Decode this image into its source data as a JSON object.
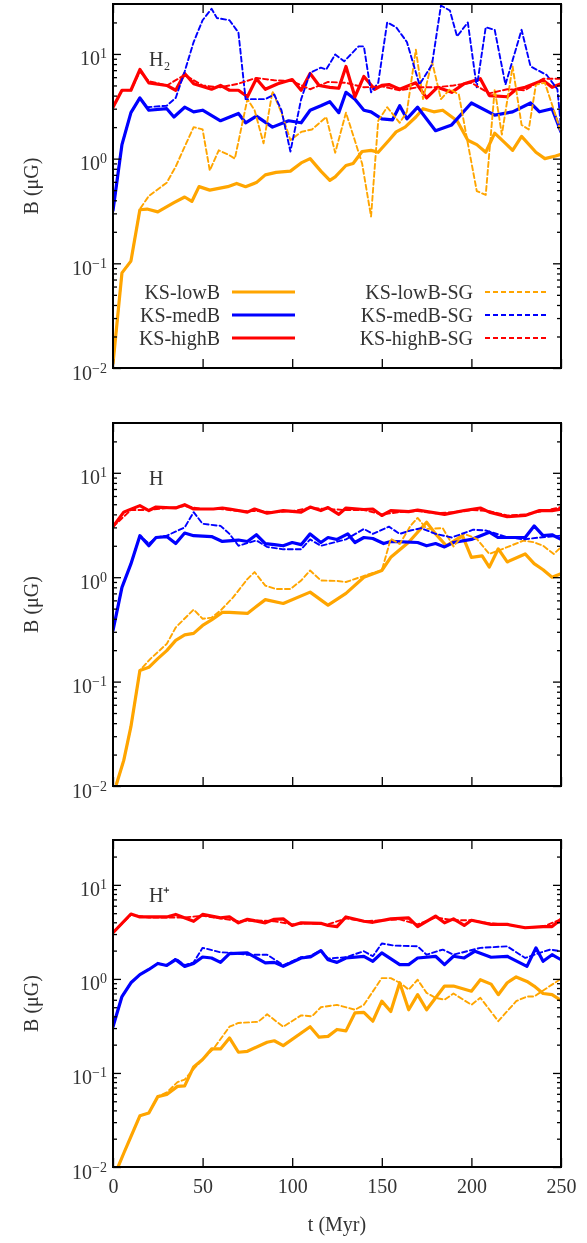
{
  "chart_data": [
    {
      "type": "line",
      "annotations": [
        "H₂"
      ],
      "ylabel": "B (μG)",
      "xlim": [
        0,
        250
      ],
      "xticks": [
        0,
        50,
        100,
        150,
        200,
        250
      ],
      "ylim": [
        0.01,
        30
      ],
      "log": true,
      "tick_labels": "y",
      "legend": "bottom",
      "yticks": [
        {
          "value": 0.01,
          "label": "10$^{−2}$"
        },
        {
          "value": 0.02,
          "label": null
        },
        {
          "value": 0.03,
          "label": null
        },
        {
          "value": 0.04,
          "label": null
        },
        {
          "value": 0.05,
          "label": null
        },
        {
          "value": 0.06,
          "label": null
        },
        {
          "value": 0.07,
          "label": null
        },
        {
          "value": 0.08,
          "label": null
        },
        {
          "value": 0.09,
          "label": null
        },
        {
          "value": 0.1,
          "label": "10$^{−1}$"
        },
        {
          "value": 0.2,
          "label": null
        },
        {
          "value": 0.3,
          "label": null
        },
        {
          "value": 0.4,
          "label": null
        },
        {
          "value": 0.5,
          "label": null
        },
        {
          "value": 0.6,
          "label": null
        },
        {
          "value": 0.7,
          "label": null
        },
        {
          "value": 0.8,
          "label": null
        },
        {
          "value": 0.9,
          "label": null
        },
        {
          "value": 1,
          "label": "10$^{0}$"
        },
        {
          "value": 2,
          "label": null
        },
        {
          "value": 3,
          "label": null
        },
        {
          "value": 4,
          "label": null
        },
        {
          "value": 5,
          "label": null
        },
        {
          "value": 6,
          "label": null
        },
        {
          "value": 7,
          "label": null
        },
        {
          "value": 8,
          "label": null
        },
        {
          "value": 9,
          "label": null
        },
        {
          "value": 10,
          "label": "10$^{1}$"
        },
        {
          "value": 20,
          "label": null
        }
      ],
      "series": [
        {
          "name": "KS-lowB",
          "color": "#ffa500",
          "line_style": "solid",
          "x": [
            0,
            5,
            10,
            15,
            19,
            25,
            34,
            40,
            44,
            48,
            54,
            64,
            69,
            74,
            80,
            85,
            91,
            99,
            105,
            110,
            116,
            121,
            124,
            130,
            134,
            139,
            144,
            148,
            154,
            158,
            163,
            169,
            173,
            179,
            184,
            192,
            198,
            203,
            208,
            213,
            219,
            223,
            228,
            236,
            241,
            247,
            250
          ],
          "values": [
            0.011,
            0.081,
            0.105,
            0.325,
            0.33,
            0.31,
            0.38,
            0.43,
            0.39,
            0.54,
            0.5,
            0.54,
            0.58,
            0.54,
            0.59,
            0.7,
            0.74,
            0.76,
            0.91,
            1.0,
            0.76,
            0.62,
            0.67,
            0.86,
            0.9,
            1.17,
            1.2,
            1.15,
            1.5,
            1.8,
            2.0,
            2.5,
            3.0,
            2.8,
            2.9,
            2.3,
            1.5,
            1.36,
            1.15,
            1.75,
            1.4,
            1.2,
            1.63,
            1.15,
            1.0,
            1.06,
            1.1
          ]
        },
        {
          "name": "KS-medB",
          "color": "#0000ff",
          "line_style": "solid",
          "x": [
            0,
            5,
            10,
            15,
            20,
            30,
            34,
            40,
            45,
            50,
            60,
            70,
            74,
            80,
            89,
            98,
            105,
            110,
            116,
            121,
            126,
            130,
            135,
            140,
            144,
            150,
            156,
            160,
            164,
            170,
            180,
            189,
            200,
            213,
            223,
            233,
            238,
            245,
            250
          ],
          "values": [
            0.32,
            1.36,
            2.75,
            3.8,
            2.9,
            3.0,
            2.5,
            3.1,
            2.8,
            2.9,
            2.3,
            2.7,
            2.2,
            2.55,
            2.0,
            2.3,
            2.2,
            2.9,
            3.2,
            3.5,
            2.75,
            4.3,
            3.7,
            2.9,
            2.8,
            2.4,
            2.35,
            3.2,
            2.4,
            3.1,
            1.85,
            2.1,
            3.4,
            2.6,
            2.8,
            3.4,
            2.8,
            3.0,
            1.8
          ]
        },
        {
          "name": "KS-highB",
          "color": "#ff0000",
          "line_style": "solid",
          "x": [
            0,
            5,
            10,
            15,
            20,
            30,
            35,
            40,
            45,
            55,
            60,
            65,
            70,
            75,
            80,
            85,
            92,
            100,
            105,
            110,
            115,
            121,
            126,
            130,
            135,
            140,
            146,
            150,
            154,
            160,
            169,
            175,
            181,
            189,
            196,
            205,
            210,
            220,
            225,
            230,
            240,
            245,
            250
          ],
          "values": [
            3.1,
            4.5,
            4.5,
            7.1,
            5.3,
            5.0,
            4.5,
            6.5,
            5.2,
            4.6,
            5.0,
            4.5,
            4.5,
            3.9,
            5.8,
            4.6,
            5.2,
            5.7,
            4.5,
            6.5,
            5.0,
            4.8,
            4.7,
            7.6,
            3.9,
            6.1,
            4.6,
            5.0,
            5.1,
            4.6,
            5.3,
            3.8,
            4.8,
            4.3,
            5.2,
            5.8,
            4.0,
            3.9,
            4.6,
            4.8,
            5.6,
            4.8,
            5.2
          ]
        },
        {
          "name": "KS-lowB-SG",
          "color": "#ffa500",
          "line_style": "dashed",
          "x": [
            0,
            5,
            10,
            15,
            20,
            30,
            35,
            40,
            45,
            50,
            54,
            59,
            64,
            68,
            75,
            79,
            84,
            89,
            94,
            99,
            105,
            111,
            119,
            124,
            130,
            133,
            139,
            144,
            148,
            153,
            160,
            164,
            169,
            173,
            178,
            183,
            188,
            193,
            198,
            203,
            208,
            213,
            217,
            223,
            228,
            232,
            236,
            241,
            250
          ],
          "values": [
            0.011,
            0.081,
            0.105,
            0.33,
            0.44,
            0.59,
            0.84,
            1.3,
            2.0,
            1.9,
            0.77,
            1.2,
            1.1,
            1.0,
            3.7,
            2.9,
            1.4,
            4.4,
            2.75,
            1.5,
            1.8,
            1.9,
            2.5,
            1.14,
            2.75,
            1.9,
            0.9,
            0.28,
            2.3,
            3.1,
            2.2,
            2.8,
            11,
            3.7,
            8.5,
            3.7,
            4.6,
            4.1,
            1.4,
            0.49,
            0.45,
            4.6,
            1.7,
            7.6,
            2.1,
            1.9,
            5.1,
            5.3,
            1.8
          ]
        },
        {
          "name": "KS-medB-SG",
          "color": "#0000ff",
          "line_style": "dashed",
          "x": [
            0,
            5,
            10,
            15,
            19,
            30,
            35,
            40,
            45,
            50,
            55,
            58,
            65,
            70,
            74,
            85,
            90,
            94,
            99,
            105,
            110,
            116,
            119,
            124,
            129,
            137,
            140,
            144,
            148,
            153,
            158,
            164,
            171,
            178,
            183,
            188,
            192,
            198,
            203,
            208,
            213,
            219,
            228,
            233,
            242,
            248,
            250
          ],
          "values": [
            0.32,
            1.36,
            2.75,
            3.8,
            3.1,
            3.2,
            3.8,
            6.8,
            13,
            21,
            27,
            22,
            21,
            16,
            3.7,
            3.7,
            4.1,
            2.9,
            1.17,
            3.7,
            6.6,
            7.4,
            7.1,
            9.9,
            8.5,
            11.8,
            11.8,
            4.3,
            5.3,
            20,
            18,
            13,
            5.1,
            7.9,
            29,
            26,
            14.7,
            20,
            4.8,
            18,
            17,
            5.1,
            17,
            7.6,
            6.3,
            4.6,
            2.0
          ]
        },
        {
          "name": "KS-highB-SG",
          "color": "#ff0000",
          "line_style": "dashed",
          "x": [
            0,
            5,
            10,
            15,
            20,
            30,
            40,
            50,
            60,
            70,
            80,
            90,
            100,
            110,
            120,
            130,
            140,
            150,
            160,
            170,
            180,
            190,
            200,
            210,
            220,
            230,
            240,
            250
          ],
          "values": [
            3.1,
            4.5,
            4.5,
            6.8,
            5.5,
            5.0,
            6.3,
            5.0,
            4.8,
            5.2,
            5.9,
            5.6,
            5.5,
            4.6,
            5.4,
            5.3,
            4.8,
            4.9,
            4.5,
            4.8,
            4.8,
            5.0,
            5.3,
            4.2,
            4.6,
            4.5,
            5.8,
            5.8
          ]
        }
      ]
    },
    {
      "type": "line",
      "annotations": [
        "H"
      ],
      "ylabel": "B (μG)",
      "xlim": [
        0,
        250
      ],
      "xticks": [
        0,
        50,
        100,
        150,
        200,
        250
      ],
      "ylim": [
        0.01,
        30
      ],
      "log": true,
      "tick_labels": "y",
      "yticks": [
        {
          "value": 0.01,
          "label": "10$^{−2}$"
        },
        {
          "value": 0.02,
          "label": null
        },
        {
          "value": 0.03,
          "label": null
        },
        {
          "value": 0.04,
          "label": null
        },
        {
          "value": 0.05,
          "label": null
        },
        {
          "value": 0.06,
          "label": null
        },
        {
          "value": 0.07,
          "label": null
        },
        {
          "value": 0.08,
          "label": null
        },
        {
          "value": 0.09,
          "label": null
        },
        {
          "value": 0.1,
          "label": "10$^{−1}$"
        },
        {
          "value": 0.2,
          "label": null
        },
        {
          "value": 0.3,
          "label": null
        },
        {
          "value": 0.4,
          "label": null
        },
        {
          "value": 0.5,
          "label": null
        },
        {
          "value": 0.6,
          "label": null
        },
        {
          "value": 0.7,
          "label": null
        },
        {
          "value": 0.8,
          "label": null
        },
        {
          "value": 0.9,
          "label": null
        },
        {
          "value": 1,
          "label": "10$^{0}$"
        },
        {
          "value": 2,
          "label": null
        },
        {
          "value": 3,
          "label": null
        },
        {
          "value": 4,
          "label": null
        },
        {
          "value": 5,
          "label": null
        },
        {
          "value": 6,
          "label": null
        },
        {
          "value": 7,
          "label": null
        },
        {
          "value": 8,
          "label": null
        },
        {
          "value": 9,
          "label": null
        },
        {
          "value": 10,
          "label": "10$^{1}$"
        },
        {
          "value": 20,
          "label": null
        }
      ],
      "series": [
        {
          "color": "#ffa500",
          "line_style": "solid",
          "x": [
            2,
            6,
            10,
            15,
            20,
            25,
            30,
            35,
            40,
            45,
            50,
            55,
            61,
            65,
            75,
            85,
            95,
            110,
            120,
            130,
            140,
            150,
            155,
            165,
            175,
            180,
            186,
            195,
            200,
            206,
            210,
            215,
            220,
            230,
            235,
            240,
            245,
            250
          ],
          "values": [
            0.0105,
            0.0176,
            0.037,
            0.128,
            0.137,
            0.166,
            0.198,
            0.248,
            0.28,
            0.29,
            0.345,
            0.39,
            0.46,
            0.46,
            0.45,
            0.61,
            0.56,
            0.72,
            0.54,
            0.7,
            1.0,
            1.16,
            1.55,
            2.16,
            3.36,
            2.6,
            2.0,
            2.5,
            1.55,
            1.6,
            1.25,
            1.87,
            1.4,
            1.67,
            1.35,
            1.18,
            1.0,
            1.08
          ]
        },
        {
          "color": "#0000ff",
          "line_style": "solid",
          "x": [
            0,
            5,
            10,
            15,
            20,
            24,
            30,
            35,
            40,
            45,
            55,
            61,
            70,
            75,
            80,
            85,
            90,
            95,
            100,
            105,
            110,
            116,
            120,
            125,
            131,
            135,
            140,
            145,
            151,
            155,
            170,
            175,
            180,
            185,
            190,
            200,
            210,
            215,
            230,
            235,
            240,
            245,
            250
          ],
          "values": [
            0.31,
            0.8,
            1.34,
            2.5,
            2.0,
            2.4,
            2.45,
            2.1,
            2.65,
            2.5,
            2.45,
            2.2,
            2.27,
            2.2,
            2.55,
            2.1,
            2.05,
            2.0,
            2.15,
            2.05,
            2.6,
            2.15,
            2.4,
            2.3,
            2.6,
            2.15,
            2.4,
            2.35,
            2.1,
            2.2,
            2.15,
            2.0,
            2.1,
            1.95,
            2.15,
            2.3,
            2.7,
            2.4,
            2.4,
            3.1,
            2.5,
            2.55,
            2.3
          ]
        },
        {
          "color": "#ff0000",
          "line_style": "solid",
          "x": [
            0,
            6,
            15,
            20,
            24,
            35,
            40,
            45,
            56,
            61,
            65,
            75,
            79,
            86,
            95,
            105,
            110,
            116,
            120,
            126,
            130,
            140,
            145,
            150,
            155,
            165,
            170,
            185,
            196,
            205,
            210,
            220,
            230,
            238,
            245,
            250
          ],
          "values": [
            3.05,
            4.2,
            4.85,
            4.35,
            4.7,
            4.6,
            4.95,
            4.5,
            4.5,
            4.6,
            4.5,
            4.2,
            4.5,
            4.1,
            4.35,
            4.2,
            4.7,
            4.35,
            4.65,
            4.0,
            4.6,
            4.45,
            4.5,
            3.9,
            4.35,
            4.25,
            4.4,
            4.0,
            4.35,
            4.6,
            4.2,
            3.8,
            3.9,
            4.35,
            4.35,
            4.5
          ]
        },
        {
          "color": "#ffa500",
          "line_style": "dashed",
          "x": [
            2,
            6,
            10,
            15,
            21,
            30,
            35,
            45,
            50,
            55,
            60,
            67,
            75,
            79,
            85,
            91,
            99,
            105,
            110,
            116,
            125,
            130,
            143,
            150,
            155,
            160,
            166,
            170,
            175,
            184,
            190,
            196,
            203,
            210,
            220,
            229,
            235,
            240,
            246,
            250
          ],
          "values": [
            0.0105,
            0.0176,
            0.037,
            0.128,
            0.166,
            0.23,
            0.33,
            0.49,
            0.4,
            0.41,
            0.48,
            0.64,
            0.96,
            1.12,
            0.83,
            0.77,
            0.77,
            0.93,
            1.16,
            0.93,
            0.92,
            0.9,
            1.07,
            1.16,
            2.33,
            2.08,
            3.1,
            3.7,
            2.9,
            2.95,
            1.97,
            2.6,
            2.33,
            1.67,
            1.94,
            2.24,
            2.16,
            2.0,
            1.67,
            1.94
          ]
        },
        {
          "color": "#0000ff",
          "line_style": "dashed",
          "x": [
            0,
            5,
            10,
            15,
            20,
            24,
            30,
            40,
            45,
            50,
            60,
            65,
            70,
            80,
            86,
            95,
            105,
            110,
            116,
            130,
            140,
            145,
            154,
            160,
            166,
            172,
            180,
            189,
            201,
            208,
            219,
            229,
            238,
            250
          ],
          "values": [
            0.31,
            0.8,
            1.34,
            2.5,
            2.1,
            2.4,
            2.5,
            3.0,
            4.2,
            3.25,
            3.1,
            2.6,
            2.0,
            2.25,
            1.95,
            1.85,
            1.85,
            2.3,
            2.0,
            2.3,
            2.9,
            2.6,
            3.05,
            2.6,
            2.8,
            2.95,
            2.6,
            2.4,
            2.85,
            2.8,
            2.45,
            2.3,
            2.4,
            2.5
          ]
        },
        {
          "color": "#ff0000",
          "line_style": "dashed",
          "x": [
            0,
            10,
            20,
            30,
            40,
            50,
            60,
            70,
            80,
            90,
            100,
            110,
            120,
            130,
            140,
            150,
            160,
            170,
            180,
            190,
            200,
            210,
            220,
            230,
            240,
            250
          ],
          "values": [
            3.05,
            4.4,
            4.4,
            4.6,
            4.8,
            4.5,
            4.5,
            4.3,
            4.3,
            4.2,
            4.3,
            4.6,
            4.5,
            4.4,
            4.4,
            4.0,
            4.2,
            4.3,
            4.1,
            4.2,
            4.4,
            4.3,
            3.9,
            4.0,
            4.3,
            4.7
          ]
        }
      ]
    },
    {
      "type": "line",
      "annotations": [
        "H⁺"
      ],
      "ylabel": "B (μG)",
      "xlabel": "t (Myr)",
      "xlim": [
        0,
        250
      ],
      "xticks": [
        0,
        50,
        100,
        150,
        200,
        250
      ],
      "ylim": [
        0.01,
        30
      ],
      "log": true,
      "yticks": [
        {
          "value": 0.01,
          "label": "10$^{−2}$"
        },
        {
          "value": 0.02,
          "label": null
        },
        {
          "value": 0.03,
          "label": null
        },
        {
          "value": 0.04,
          "label": null
        },
        {
          "value": 0.05,
          "label": null
        },
        {
          "value": 0.06,
          "label": null
        },
        {
          "value": 0.07,
          "label": null
        },
        {
          "value": 0.08,
          "label": null
        },
        {
          "value": 0.09,
          "label": null
        },
        {
          "value": 0.1,
          "label": "10$^{−1}$"
        },
        {
          "value": 0.2,
          "label": null
        },
        {
          "value": 0.3,
          "label": null
        },
        {
          "value": 0.4,
          "label": null
        },
        {
          "value": 0.5,
          "label": null
        },
        {
          "value": 0.6,
          "label": null
        },
        {
          "value": 0.7,
          "label": null
        },
        {
          "value": 0.8,
          "label": null
        },
        {
          "value": 0.9,
          "label": null
        },
        {
          "value": 1,
          "label": "10$^{0}$"
        },
        {
          "value": 2,
          "label": null
        },
        {
          "value": 3,
          "label": null
        },
        {
          "value": 4,
          "label": null
        },
        {
          "value": 5,
          "label": null
        },
        {
          "value": 6,
          "label": null
        },
        {
          "value": 7,
          "label": null
        },
        {
          "value": 8,
          "label": null
        },
        {
          "value": 9,
          "label": null
        },
        {
          "value": 10,
          "label": "10$^{1}$"
        },
        {
          "value": 20,
          "label": null
        }
      ],
      "series": [
        {
          "color": "#ffa500",
          "line_style": "solid",
          "x": [
            3,
            6,
            10,
            15,
            20,
            25,
            30,
            36,
            40,
            45,
            50,
            55,
            60,
            65,
            70,
            75,
            86,
            90,
            95,
            110,
            115,
            120,
            125,
            130,
            135,
            140,
            145,
            150,
            155,
            160,
            165,
            170,
            175,
            185,
            190,
            200,
            205,
            211,
            215,
            220,
            225,
            231,
            235,
            240,
            245,
            250
          ],
          "values": [
            0.0102,
            0.014,
            0.021,
            0.035,
            0.0375,
            0.056,
            0.059,
            0.072,
            0.073,
            0.116,
            0.139,
            0.18,
            0.18,
            0.236,
            0.166,
            0.17,
            0.212,
            0.22,
            0.195,
            0.31,
            0.24,
            0.245,
            0.29,
            0.28,
            0.435,
            0.44,
            0.355,
            0.58,
            0.45,
            0.91,
            0.47,
            0.68,
            0.47,
            0.84,
            0.84,
            0.74,
            0.98,
            0.88,
            0.68,
            0.91,
            1.05,
            0.94,
            0.84,
            0.7,
            0.68,
            0.59
          ]
        },
        {
          "color": "#0000ff",
          "line_style": "solid",
          "x": [
            0,
            5,
            10,
            15,
            20,
            25,
            30,
            35,
            40,
            45,
            50,
            55,
            60,
            65,
            75,
            85,
            90,
            95,
            105,
            110,
            116,
            120,
            125,
            130,
            140,
            145,
            150,
            160,
            165,
            170,
            180,
            185,
            190,
            196,
            202,
            211,
            220,
            231,
            236,
            240,
            245,
            250
          ],
          "values": [
            0.31,
            0.65,
            0.91,
            1.11,
            1.26,
            1.46,
            1.39,
            1.6,
            1.36,
            1.46,
            1.71,
            1.67,
            1.5,
            1.86,
            1.89,
            1.48,
            1.5,
            1.36,
            1.67,
            1.71,
            2.0,
            1.6,
            1.5,
            1.67,
            1.74,
            1.54,
            1.89,
            1.42,
            1.42,
            1.67,
            1.74,
            1.42,
            1.74,
            1.67,
            1.97,
            1.7,
            1.74,
            1.36,
            2.14,
            1.54,
            1.81,
            1.6
          ]
        },
        {
          "color": "#ff0000",
          "line_style": "solid",
          "x": [
            0,
            10,
            15,
            30,
            35,
            45,
            50,
            60,
            65,
            70,
            75,
            85,
            90,
            95,
            100,
            105,
            116,
            120,
            125,
            130,
            140,
            145,
            155,
            165,
            170,
            180,
            185,
            190,
            196,
            200,
            211,
            220,
            230,
            240,
            245,
            250
          ],
          "values": [
            3.1,
            4.9,
            4.56,
            4.56,
            4.85,
            4.1,
            4.85,
            4.45,
            4.56,
            3.95,
            4.3,
            3.95,
            4.3,
            4.35,
            3.7,
            3.95,
            3.9,
            3.7,
            3.6,
            4.56,
            4.1,
            4.0,
            4.35,
            4.45,
            3.6,
            4.65,
            3.95,
            4.35,
            3.7,
            4.2,
            3.8,
            3.8,
            3.5,
            3.6,
            3.6,
            4.3
          ]
        },
        {
          "color": "#ffa500",
          "line_style": "dashed",
          "x": [
            3,
            6,
            10,
            15,
            20,
            25,
            30,
            36,
            40,
            45,
            50,
            56,
            65,
            70,
            81,
            86,
            95,
            105,
            111,
            116,
            125,
            135,
            140,
            150,
            155,
            160,
            165,
            170,
            175,
            180,
            185,
            190,
            200,
            205,
            215,
            225,
            231,
            235,
            245,
            250
          ],
          "values": [
            0.0102,
            0.014,
            0.021,
            0.035,
            0.0375,
            0.056,
            0.062,
            0.08,
            0.085,
            0.11,
            0.139,
            0.18,
            0.31,
            0.34,
            0.35,
            0.42,
            0.31,
            0.41,
            0.4,
            0.5,
            0.53,
            0.47,
            0.53,
            1.02,
            1.02,
            0.91,
            0.77,
            0.98,
            0.71,
            0.63,
            0.6,
            0.7,
            0.53,
            0.63,
            0.355,
            0.58,
            0.65,
            0.65,
            0.87,
            1.0
          ]
        },
        {
          "color": "#0000ff",
          "line_style": "dashed",
          "x": [
            0,
            5,
            10,
            15,
            20,
            25,
            30,
            35,
            40,
            45,
            50,
            60,
            67,
            75,
            86,
            95,
            105,
            110,
            116,
            120,
            130,
            140,
            145,
            150,
            157,
            170,
            175,
            184,
            190,
            205,
            220,
            230,
            238,
            244,
            250
          ],
          "values": [
            0.31,
            0.65,
            0.91,
            1.11,
            1.26,
            1.46,
            1.39,
            1.65,
            1.4,
            1.5,
            2.14,
            1.92,
            1.89,
            1.8,
            1.81,
            1.4,
            1.7,
            1.75,
            2.0,
            1.65,
            1.7,
            1.97,
            1.74,
            2.38,
            2.26,
            2.22,
            1.81,
            2.05,
            1.81,
            2.14,
            2.22,
            1.67,
            1.89,
            2.05,
            1.97
          ]
        },
        {
          "color": "#ff0000",
          "line_style": "dashed",
          "x": [
            0,
            10,
            20,
            30,
            40,
            50,
            60,
            70,
            80,
            90,
            100,
            110,
            120,
            130,
            140,
            150,
            160,
            170,
            180,
            190,
            200,
            210,
            220,
            230,
            240,
            250
          ],
          "values": [
            3.1,
            4.8,
            4.5,
            4.5,
            4.5,
            4.7,
            4.4,
            4.1,
            4.2,
            4.1,
            3.8,
            3.9,
            3.8,
            4.4,
            4.1,
            4.2,
            4.3,
            3.8,
            4.5,
            4.2,
            4.2,
            3.9,
            3.8,
            3.5,
            3.6,
            4.3
          ]
        }
      ]
    }
  ]
}
